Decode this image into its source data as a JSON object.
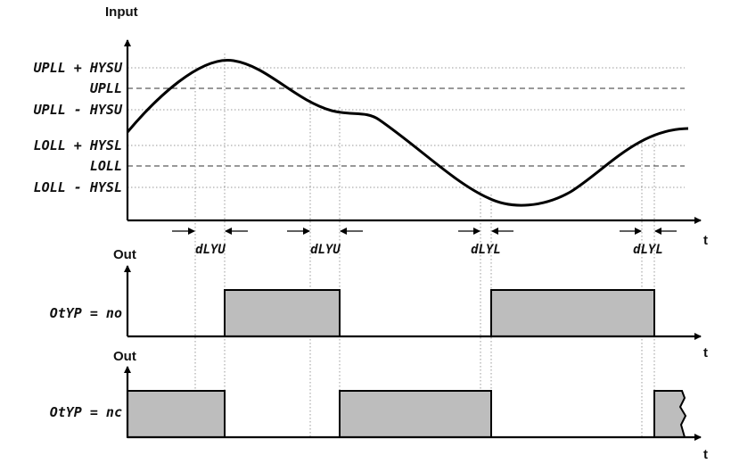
{
  "axes": {
    "input_label": "Input",
    "out_label_1": "Out",
    "out_label_2": "Out",
    "t_label_1": "t",
    "t_label_2": "t",
    "t_label_3": "t"
  },
  "levels": {
    "upll_plus_hysu": "UPLL + HYSU",
    "upll": "UPLL",
    "upll_minus_hysu": "UPLL - HYSU",
    "loll_plus_hysl": "LOLL + HYSL",
    "loll": "LOLL",
    "loll_minus_hysl": "LOLL - HYSL"
  },
  "delays": {
    "d1": "dLYU",
    "d2": "dLYU",
    "d3": "dLYL",
    "d4": "dLYL"
  },
  "outputs": {
    "no_label": "OtYP = no",
    "nc_label": "OtYP = nc"
  }
}
